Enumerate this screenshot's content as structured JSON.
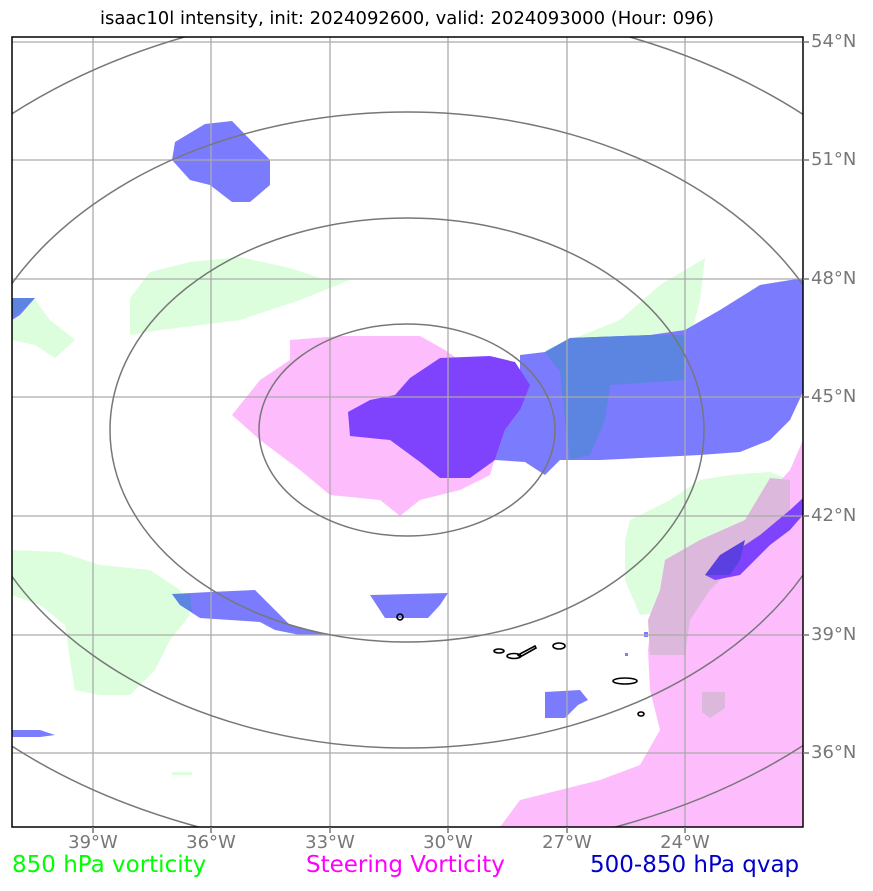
{
  "title": "isaac10l intensity, init: 2024092600, valid: 2024093000 (Hour: 096)",
  "lat_labels": [
    "54°N",
    "51°N",
    "48°N",
    "45°N",
    "42°N",
    "39°N",
    "36°N"
  ],
  "lon_labels": [
    "39°W",
    "36°W",
    "33°W",
    "30°W",
    "27°W",
    "24°W"
  ],
  "legend": [
    {
      "label": "850 hPa vorticity",
      "color": "#00ff00"
    },
    {
      "label": "Steering Vorticity",
      "color": "#ff00ff"
    },
    {
      "label": "500-850 hPa qvap",
      "color": "#0000cc"
    }
  ],
  "colors": {
    "vorticity_850": "#dcfedc",
    "steering_vorticity": "#fdbdfd",
    "qvap": "#7b7bfd",
    "qvap_core": "#7f43fd",
    "gridline": "#aaaaaa",
    "range_rings": "#777777"
  }
}
